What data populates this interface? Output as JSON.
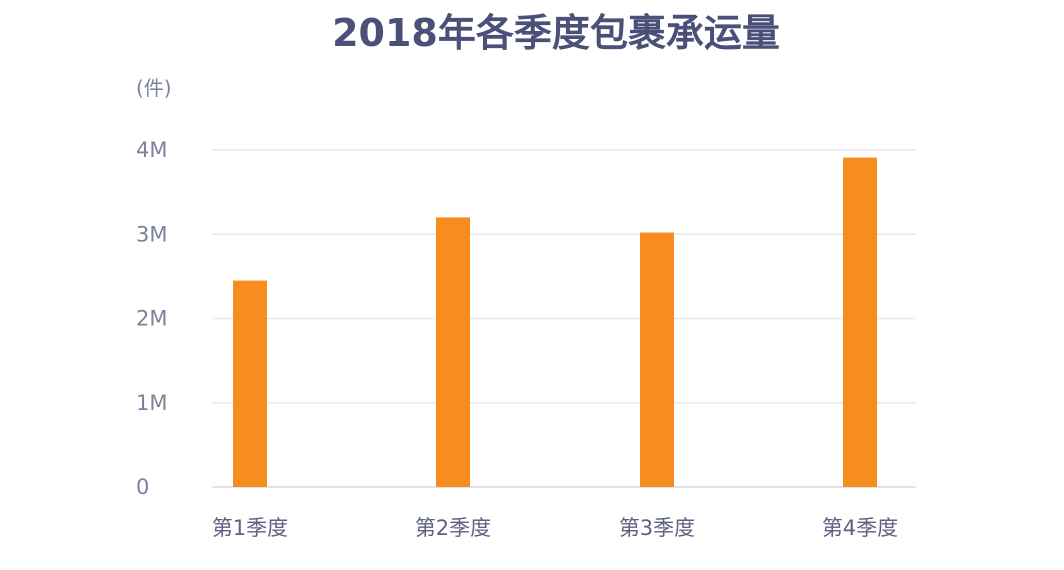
{
  "chart_data": {
    "type": "bar",
    "title": "2018年各季度包裹承运量",
    "ylabel": "(件)",
    "xlabel": "",
    "categories": [
      "第1季度",
      "第2季度",
      "第3季度",
      "第4季度"
    ],
    "values": [
      2450000,
      3200000,
      3020000,
      3910000
    ],
    "ylim": [
      0,
      4000000
    ],
    "yticks": [
      {
        "value": 0,
        "label": "0"
      },
      {
        "value": 1000000,
        "label": "1M"
      },
      {
        "value": 2000000,
        "label": "2M"
      },
      {
        "value": 3000000,
        "label": "3M"
      },
      {
        "value": 4000000,
        "label": "4M"
      }
    ],
    "grid": true,
    "legend": "none",
    "bar_color": "#f78d1e"
  }
}
